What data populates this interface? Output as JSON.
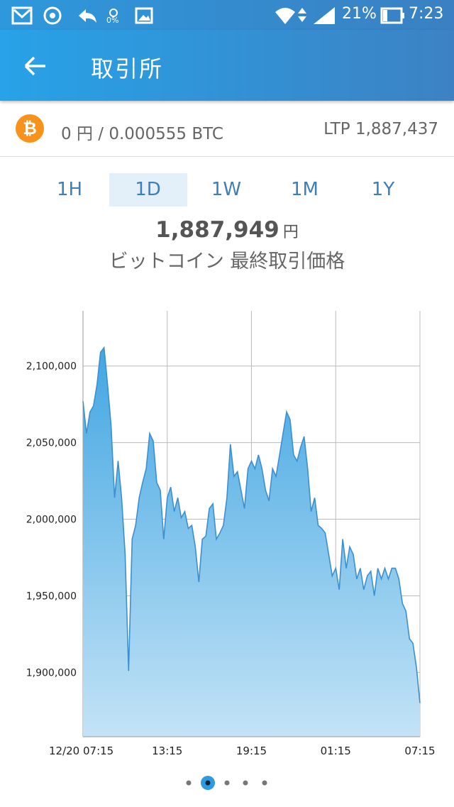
{
  "status_bar": {
    "brightness": "0%",
    "battery": "21%",
    "time": "7:23"
  },
  "app_bar": {
    "title": "取引所"
  },
  "balance": {
    "amount": "0 円 / 0.000555 BTC",
    "ltp": "LTP 1,887,437"
  },
  "tabs": [
    "1H",
    "1D",
    "1W",
    "1M",
    "1Y"
  ],
  "price": {
    "value": "1,887,949",
    "unit": "円",
    "label": "ビットコイン 最終取引価格"
  },
  "chart_data": {
    "type": "area",
    "categories": [
      "12/20 07:15",
      null,
      null,
      null,
      null,
      null,
      null,
      null,
      null,
      null,
      null,
      null,
      null,
      null,
      null,
      null,
      null,
      null,
      null,
      null,
      null,
      null,
      null,
      null,
      "13:15",
      null,
      null,
      null,
      null,
      null,
      null,
      null,
      null,
      null,
      null,
      null,
      null,
      null,
      null,
      null,
      null,
      null,
      null,
      null,
      null,
      null,
      null,
      null,
      "19:15",
      null,
      null,
      null,
      null,
      null,
      null,
      null,
      null,
      null,
      null,
      null,
      null,
      null,
      null,
      null,
      null,
      null,
      null,
      null,
      null,
      null,
      null,
      null,
      "01:15",
      null,
      null,
      null,
      null,
      null,
      null,
      null,
      null,
      null,
      null,
      null,
      null,
      null,
      null,
      null,
      null,
      null,
      null,
      null,
      null,
      null,
      null,
      null,
      "07:15"
    ],
    "values": [
      2077000,
      2056000,
      2070000,
      2074000,
      2088000,
      2109000,
      2112000,
      2088000,
      2061000,
      2014000,
      2038000,
      2014000,
      1977000,
      1901000,
      1987000,
      1996000,
      2014000,
      2024000,
      2033000,
      2056000,
      2051000,
      2024000,
      2019000,
      1987000,
      2014000,
      2021000,
      2005000,
      2014000,
      2001000,
      2005000,
      1994000,
      1996000,
      1982000,
      1959000,
      1987000,
      1989000,
      2007000,
      2010000,
      1987000,
      1991000,
      1996000,
      2014000,
      2049000,
      2028000,
      2031000,
      2019000,
      2007000,
      2033000,
      2038000,
      2033000,
      2042000,
      2033000,
      2019000,
      2012000,
      2033000,
      2028000,
      2042000,
      2056000,
      2070000,
      2065000,
      2042000,
      2038000,
      2047000,
      2054000,
      2033000,
      2005000,
      2014000,
      1996000,
      1994000,
      1991000,
      1977000,
      1963000,
      1968000,
      1954000,
      1987000,
      1968000,
      1982000,
      1977000,
      1961000,
      1968000,
      1954000,
      1963000,
      1966000,
      1950000,
      1968000,
      1961000,
      1968000,
      1961000,
      1968000,
      1968000,
      1961000,
      1945000,
      1940000,
      1922000,
      1919000,
      1903000,
      1880000
    ],
    "color": "#3d8fd0",
    "ylim": [
      1858000,
      2136000
    ],
    "yticks": [
      {
        "value": 1900000,
        "label": "1,900,000"
      },
      {
        "value": 1950000,
        "label": "1,950,000"
      },
      {
        "value": 2000000,
        "label": "2,000,000"
      },
      {
        "value": 2050000,
        "label": "2,050,000"
      },
      {
        "value": 2100000,
        "label": "2,100,000"
      }
    ],
    "grid": true
  }
}
